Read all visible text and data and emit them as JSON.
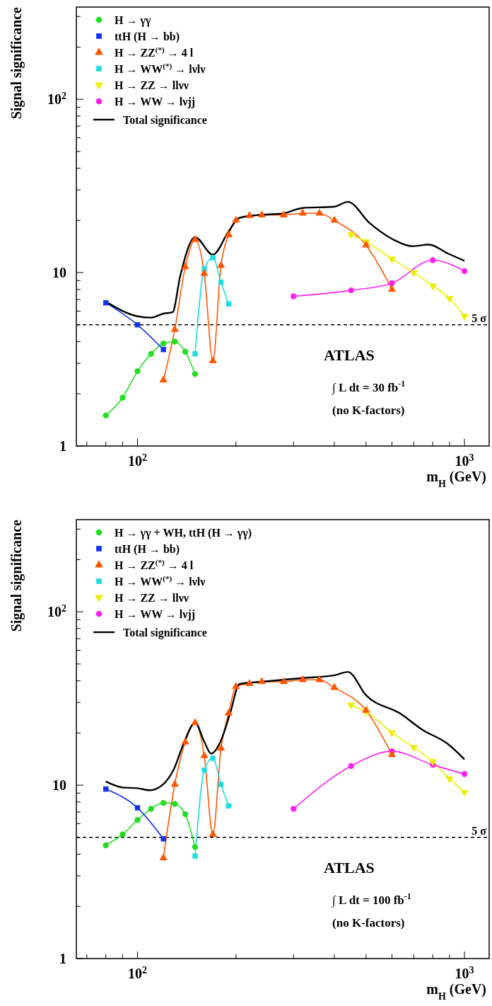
{
  "chart_data": [
    {
      "type": "line",
      "xlabel": "m$_{H}$ (GeV)",
      "ylabel": "Signal significance",
      "log": "xy",
      "xlim": [
        65,
        1190
      ],
      "ylim": [
        1,
        340
      ],
      "xticks": [
        {
          "value": 70,
          "label": null
        },
        {
          "value": 80,
          "label": null
        },
        {
          "value": 90,
          "label": null
        },
        {
          "value": 100,
          "label": "10$^{2}$"
        },
        {
          "value": 200,
          "label": null
        },
        {
          "value": 300,
          "label": null
        },
        {
          "value": 400,
          "label": null
        },
        {
          "value": 500,
          "label": null
        },
        {
          "value": 600,
          "label": null
        },
        {
          "value": 700,
          "label": null
        },
        {
          "value": 800,
          "label": null
        },
        {
          "value": 900,
          "label": null
        },
        {
          "value": 1000,
          "label": "10$^{3}$"
        }
      ],
      "yticks": [
        {
          "value": 1,
          "label": "1"
        },
        {
          "value": 2,
          "label": null
        },
        {
          "value": 3,
          "label": null
        },
        {
          "value": 4,
          "label": null
        },
        {
          "value": 5,
          "label": null
        },
        {
          "value": 6,
          "label": null
        },
        {
          "value": 7,
          "label": null
        },
        {
          "value": 8,
          "label": null
        },
        {
          "value": 9,
          "label": null
        },
        {
          "value": 10,
          "label": "10"
        },
        {
          "value": 20,
          "label": null
        },
        {
          "value": 30,
          "label": null
        },
        {
          "value": 40,
          "label": null
        },
        {
          "value": 50,
          "label": null
        },
        {
          "value": 60,
          "label": null
        },
        {
          "value": 70,
          "label": null
        },
        {
          "value": 80,
          "label": null
        },
        {
          "value": 90,
          "label": null
        },
        {
          "value": 100,
          "label": "10$^{2}$"
        },
        {
          "value": 200,
          "label": null
        },
        {
          "value": 300,
          "label": null
        }
      ],
      "legend": "top left",
      "series": [
        {
          "name": "H → γγ",
          "color": "#22dd22",
          "marker": "circle",
          "x": [
            80,
            90,
            100,
            110,
            120,
            130,
            140,
            150
          ],
          "values": [
            1.5,
            1.9,
            2.7,
            3.4,
            3.9,
            4.0,
            3.5,
            2.6
          ]
        },
        {
          "name": "ttH (H → bb)",
          "color": "#1133ee",
          "marker": "square",
          "x": [
            80,
            100,
            120
          ],
          "values": [
            6.7,
            5.0,
            3.6
          ]
        },
        {
          "name": "H → ZZ$^{(*)}$ → 4 l",
          "color": "#ff5500",
          "marker": "triangle",
          "x": [
            120,
            130,
            140,
            150,
            160,
            170,
            180,
            190,
            200,
            220,
            240,
            280,
            320,
            360,
            400,
            500,
            600
          ],
          "values": [
            2.4,
            4.7,
            10.8,
            15.5,
            9.9,
            3.1,
            11,
            16.5,
            20,
            21.3,
            21.5,
            21.5,
            22,
            22,
            20,
            14.4,
            8.0
          ]
        },
        {
          "name": "H → WW$^{(*)}$ → lνlν",
          "color": "#22dddd",
          "marker": "square",
          "x": [
            150,
            160,
            170,
            180,
            190
          ],
          "values": [
            3.4,
            10.5,
            12.2,
            8.8,
            6.6
          ]
        },
        {
          "name": "H → ZZ → llνν",
          "color": "#eeee00",
          "marker": "triangle-down",
          "x": [
            450,
            500,
            600,
            700,
            800,
            900,
            1000
          ],
          "values": [
            16.6,
            15.1,
            12.0,
            10.0,
            8.4,
            7.1,
            5.6
          ]
        },
        {
          "name": "H → WW → lνjj",
          "color": "#ff22ee",
          "marker": "circle",
          "x": [
            300,
            450,
            600,
            800,
            1000
          ],
          "values": [
            7.3,
            7.9,
            8.7,
            11.8,
            10.2
          ]
        },
        {
          "name": "Total significance",
          "color": "#000000",
          "marker": "none",
          "x": [
            80,
            100,
            110,
            120,
            128,
            135,
            150,
            170,
            190,
            205,
            235,
            277,
            320,
            400,
            440,
            513,
            606,
            692,
            778,
            889,
            1000
          ],
          "values": [
            6.8,
            5.6,
            5.5,
            5.8,
            5.9,
            9.5,
            16,
            12.7,
            17.3,
            20.7,
            21.5,
            21.9,
            23.6,
            24,
            25.6,
            19.3,
            15.5,
            14.2,
            14.5,
            12.9,
            11.7
          ]
        }
      ],
      "ref_lines": [
        {
          "axis": "y",
          "value": 5,
          "label": "5 σ",
          "color": "#000000",
          "line_style": "dashed"
        }
      ],
      "annotations": [
        "ATLAS",
        "∫ L dt = 30 fb$^{-1}$",
        "(no K-factors)"
      ]
    },
    {
      "type": "line",
      "xlabel": "m$_{H}$ (GeV)",
      "ylabel": "Signal significance",
      "log": "xy",
      "xlim": [
        65,
        1190
      ],
      "ylim": [
        1,
        340
      ],
      "xticks": [
        {
          "value": 70,
          "label": null
        },
        {
          "value": 80,
          "label": null
        },
        {
          "value": 90,
          "label": null
        },
        {
          "value": 100,
          "label": "10$^{2}$"
        },
        {
          "value": 200,
          "label": null
        },
        {
          "value": 300,
          "label": null
        },
        {
          "value": 400,
          "label": null
        },
        {
          "value": 500,
          "label": null
        },
        {
          "value": 600,
          "label": null
        },
        {
          "value": 700,
          "label": null
        },
        {
          "value": 800,
          "label": null
        },
        {
          "value": 900,
          "label": null
        },
        {
          "value": 1000,
          "label": "10$^{3}$"
        }
      ],
      "yticks": [
        {
          "value": 1,
          "label": "1"
        },
        {
          "value": 2,
          "label": null
        },
        {
          "value": 3,
          "label": null
        },
        {
          "value": 4,
          "label": null
        },
        {
          "value": 5,
          "label": null
        },
        {
          "value": 6,
          "label": null
        },
        {
          "value": 7,
          "label": null
        },
        {
          "value": 8,
          "label": null
        },
        {
          "value": 9,
          "label": null
        },
        {
          "value": 10,
          "label": "10"
        },
        {
          "value": 20,
          "label": null
        },
        {
          "value": 30,
          "label": null
        },
        {
          "value": 40,
          "label": null
        },
        {
          "value": 50,
          "label": null
        },
        {
          "value": 60,
          "label": null
        },
        {
          "value": 70,
          "label": null
        },
        {
          "value": 80,
          "label": null
        },
        {
          "value": 90,
          "label": null
        },
        {
          "value": 100,
          "label": "10$^{2}$"
        },
        {
          "value": 200,
          "label": null
        },
        {
          "value": 300,
          "label": null
        }
      ],
      "legend": "top left",
      "series": [
        {
          "name": "H → γγ + WH, ttH (H → γγ)",
          "color": "#22dd22",
          "marker": "circle",
          "x": [
            80,
            90,
            100,
            110,
            120,
            130,
            140,
            150
          ],
          "values": [
            4.5,
            5.2,
            6.3,
            7.3,
            7.9,
            7.8,
            6.8,
            4.4
          ]
        },
        {
          "name": "ttH (H → bb)",
          "color": "#1133ee",
          "marker": "square",
          "x": [
            80,
            100,
            120
          ],
          "values": [
            9.5,
            7.4,
            4.9
          ]
        },
        {
          "name": "H → ZZ$^{(*)}$ → 4 l",
          "color": "#ff5500",
          "marker": "triangle",
          "x": [
            120,
            130,
            140,
            150,
            160,
            170,
            180,
            190,
            200,
            220,
            240,
            280,
            320,
            360,
            400,
            500,
            600
          ],
          "values": [
            3.8,
            10.1,
            17.7,
            22.9,
            14.8,
            5.2,
            16.3,
            26,
            37,
            38.5,
            39.5,
            39.5,
            40.5,
            40.5,
            36.5,
            27,
            15
          ]
        },
        {
          "name": "H → WW$^{(*)}$ → lνlν",
          "color": "#22dddd",
          "marker": "square",
          "x": [
            150,
            160,
            170,
            180,
            190
          ],
          "values": [
            3.9,
            12.2,
            14.3,
            10.1,
            7.6
          ]
        },
        {
          "name": "H → ZZ → llνν",
          "color": "#eeee00",
          "marker": "triangle-down",
          "x": [
            450,
            500,
            600,
            700,
            800,
            900,
            1000
          ],
          "values": [
            29,
            26.5,
            20.1,
            16.5,
            13.7,
            10.9,
            9.1
          ]
        },
        {
          "name": "H → WW → lνjj",
          "color": "#ff22ee",
          "marker": "circle",
          "x": [
            300,
            450,
            600,
            800,
            1000
          ],
          "values": [
            7.3,
            12.9,
            15.7,
            13.1,
            11.6
          ]
        },
        {
          "name": "Total significance",
          "color": "#000000",
          "marker": "none",
          "x": [
            80,
            90,
            100,
            109,
            119,
            129,
            140,
            150,
            160,
            168,
            180,
            192,
            205,
            240,
            320,
            400,
            440,
            500,
            636,
            743,
            889,
            1000
          ],
          "values": [
            10.5,
            9.7,
            9.6,
            9.35,
            10,
            12.3,
            18.4,
            23,
            17.8,
            15.2,
            18.1,
            26,
            38.3,
            39.5,
            41.5,
            43,
            45,
            33,
            25.9,
            20.9,
            17.3,
            14.1
          ]
        }
      ],
      "ref_lines": [
        {
          "axis": "y",
          "value": 5,
          "label": "5 σ",
          "color": "#000000",
          "line_style": "dashed"
        }
      ],
      "annotations": [
        "ATLAS",
        "∫ L dt = 100 fb$^{-1}$",
        "(no K-factors)"
      ]
    }
  ]
}
